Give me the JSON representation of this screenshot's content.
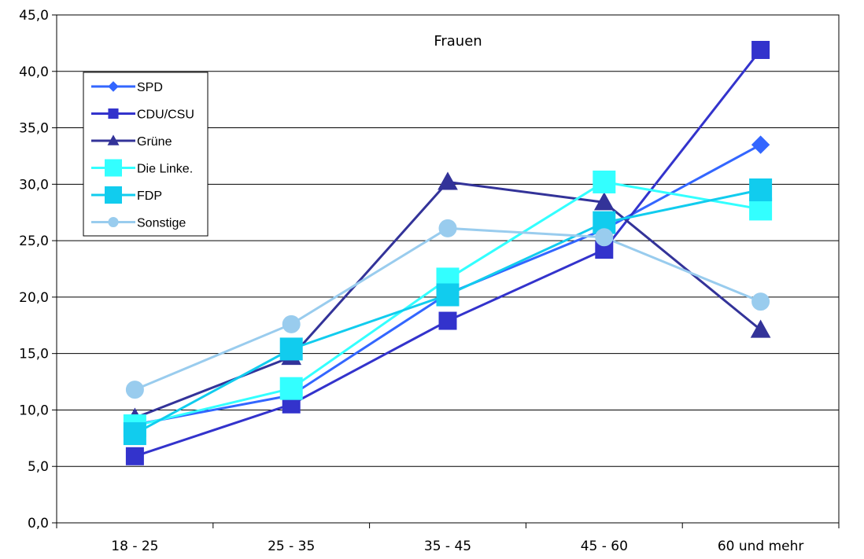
{
  "chart_data": {
    "type": "line",
    "title": "Frauen",
    "xlabel": "",
    "ylabel": "",
    "categories": [
      "18 - 25",
      "25 - 35",
      "35 - 45",
      "45 - 60",
      "60 und mehr"
    ],
    "ylim": [
      0,
      45
    ],
    "yticks": [
      "0,0",
      "5,0",
      "10,0",
      "15,0",
      "20,0",
      "25,0",
      "30,0",
      "35,0",
      "40,0",
      "45,0"
    ],
    "grid": true,
    "legend_position": "top-left",
    "series": [
      {
        "name": "SPD",
        "color": "#3366FF",
        "marker": "diamond",
        "values": [
          8.7,
          11.3,
          20.3,
          26.0,
          33.5
        ]
      },
      {
        "name": "CDU/CSU",
        "color": "#3333CC",
        "marker": "square",
        "values": [
          5.9,
          10.5,
          17.9,
          24.2,
          41.9
        ]
      },
      {
        "name": "Grüne",
        "color": "#333399",
        "marker": "triangle",
        "values": [
          9.3,
          14.7,
          30.2,
          28.4,
          17.1
        ]
      },
      {
        "name": "Die Linke.",
        "color": "#33FFFF",
        "marker": "square-large",
        "values": [
          8.6,
          11.9,
          21.6,
          30.2,
          27.8
        ]
      },
      {
        "name": "FDP",
        "color": "#11CCEE",
        "marker": "square-large",
        "values": [
          7.9,
          15.4,
          20.2,
          26.6,
          29.5
        ]
      },
      {
        "name": "Sonstige",
        "color": "#99CCEE",
        "marker": "circle",
        "values": [
          11.8,
          17.6,
          26.1,
          25.3,
          19.6
        ]
      }
    ]
  }
}
